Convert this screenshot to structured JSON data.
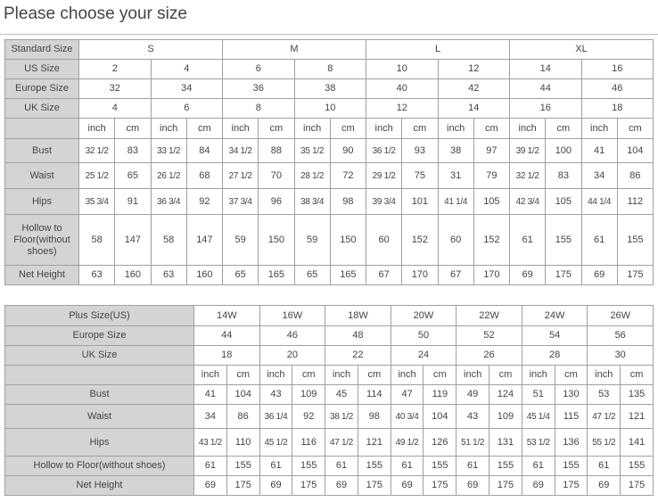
{
  "title": "Please choose your size",
  "standard_table": {
    "size_header": {
      "label": "Standard Size",
      "groups": [
        "S",
        "M",
        "L",
        "XL"
      ]
    },
    "size_rows": [
      {
        "label": "US Size",
        "values": [
          "2",
          "4",
          "6",
          "8",
          "10",
          "12",
          "14",
          "16"
        ]
      },
      {
        "label": "Europe Size",
        "values": [
          "32",
          "34",
          "36",
          "38",
          "40",
          "42",
          "44",
          "46"
        ]
      },
      {
        "label": "UK Size",
        "values": [
          "4",
          "6",
          "8",
          "10",
          "12",
          "14",
          "16",
          "18"
        ]
      }
    ],
    "units": [
      "inch",
      "cm"
    ],
    "measure_rows": [
      {
        "label": "Bust",
        "values": [
          "32 1/2",
          "83",
          "33 1/2",
          "84",
          "34 1/2",
          "88",
          "35 1/2",
          "90",
          "36 1/2",
          "93",
          "38",
          "97",
          "39 1/2",
          "100",
          "41",
          "104"
        ]
      },
      {
        "label": "Waist",
        "values": [
          "25 1/2",
          "65",
          "26 1/2",
          "68",
          "27 1/2",
          "70",
          "28 1/2",
          "72",
          "29 1/2",
          "75",
          "31",
          "79",
          "32 1/2",
          "83",
          "34",
          "86"
        ]
      },
      {
        "label": "Hips",
        "values": [
          "35 3/4",
          "91",
          "36 3/4",
          "92",
          "37 3/4",
          "96",
          "38 3/4",
          "98",
          "39 3/4",
          "101",
          "41 1/4",
          "105",
          "42 3/4",
          "105",
          "44 1/4",
          "112"
        ]
      },
      {
        "label": "Hollow to Floor(without shoes)",
        "values": [
          "58",
          "147",
          "58",
          "147",
          "59",
          "150",
          "59",
          "150",
          "60",
          "152",
          "60",
          "152",
          "61",
          "155",
          "61",
          "155"
        ]
      },
      {
        "label": "Net Height",
        "values": [
          "63",
          "160",
          "63",
          "160",
          "65",
          "165",
          "65",
          "165",
          "67",
          "170",
          "67",
          "170",
          "69",
          "175",
          "69",
          "175"
        ]
      }
    ]
  },
  "plus_table": {
    "size_rows": [
      {
        "label": "Plus Size(US)",
        "values": [
          "14W",
          "16W",
          "18W",
          "20W",
          "22W",
          "24W",
          "26W"
        ]
      },
      {
        "label": "Europe Size",
        "values": [
          "44",
          "46",
          "48",
          "50",
          "52",
          "54",
          "56"
        ]
      },
      {
        "label": "UK Size",
        "values": [
          "18",
          "20",
          "22",
          "24",
          "26",
          "28",
          "30"
        ]
      }
    ],
    "units": [
      "inch",
      "cm"
    ],
    "measure_rows": [
      {
        "label": "Bust",
        "values": [
          "41",
          "104",
          "43",
          "109",
          "45",
          "114",
          "47",
          "119",
          "49",
          "124",
          "51",
          "130",
          "53",
          "135"
        ]
      },
      {
        "label": "Waist",
        "values": [
          "34",
          "86",
          "36 1/4",
          "92",
          "38 1/2",
          "98",
          "40 3/4",
          "104",
          "43",
          "109",
          "45 1/4",
          "115",
          "47 1/2",
          "121"
        ]
      },
      {
        "label": "Hips",
        "values": [
          "43 1/2",
          "110",
          "45 1/2",
          "116",
          "47 1/2",
          "121",
          "49 1/2",
          "126",
          "51 1/2",
          "131",
          "53 1/2",
          "136",
          "55 1/2",
          "141"
        ]
      },
      {
        "label": "Hollow to Floor(without shoes)",
        "values": [
          "61",
          "155",
          "61",
          "155",
          "61",
          "155",
          "61",
          "155",
          "61",
          "155",
          "61",
          "155",
          "61",
          "155"
        ]
      },
      {
        "label": "Net Height",
        "values": [
          "69",
          "175",
          "69",
          "175",
          "69",
          "175",
          "69",
          "175",
          "69",
          "175",
          "69",
          "175",
          "69",
          "175"
        ]
      }
    ]
  }
}
